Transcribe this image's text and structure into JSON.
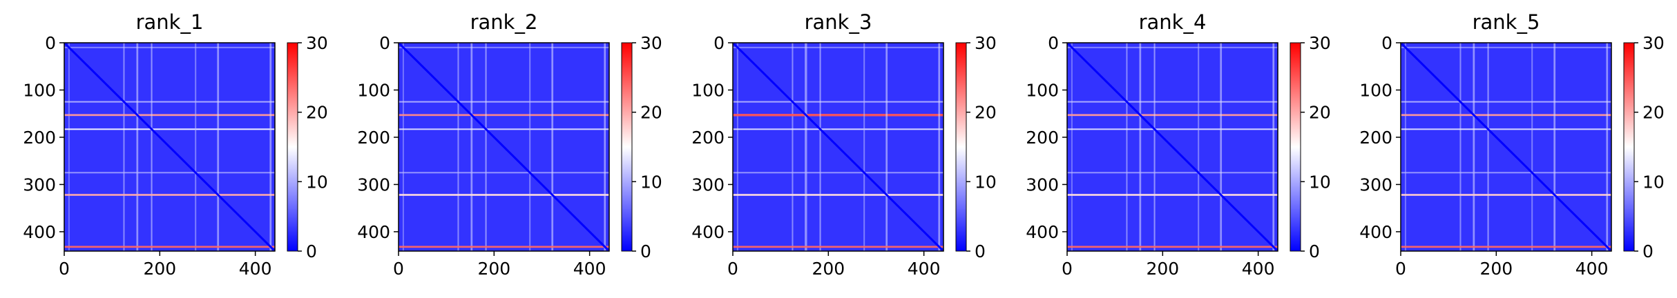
{
  "chart_data": [
    {
      "type": "heatmap",
      "title": "rank_1",
      "x_ticks": [
        0,
        200,
        400
      ],
      "y_ticks": [
        0,
        100,
        200,
        300,
        400
      ],
      "xlim": [
        0,
        441
      ],
      "ylim": [
        441,
        0
      ],
      "colorbar": {
        "ticks": [
          0,
          10,
          20,
          30
        ],
        "range": [
          0,
          30
        ],
        "colormap": "bwr"
      },
      "bands": [
        {
          "center": 10,
          "level": 10,
          "width": 2
        },
        {
          "center": 125,
          "level": 12,
          "width": 3
        },
        {
          "center": 153,
          "level": 21,
          "width": 4
        },
        {
          "center": 183,
          "level": 15,
          "width": 3
        },
        {
          "center": 275,
          "level": 11,
          "width": 2
        },
        {
          "center": 322,
          "level": 20,
          "width": 4
        },
        {
          "center": 432,
          "level": 24,
          "width": 4
        }
      ]
    },
    {
      "type": "heatmap",
      "title": "rank_2",
      "x_ticks": [
        0,
        200,
        400
      ],
      "y_ticks": [
        0,
        100,
        200,
        300,
        400
      ],
      "xlim": [
        0,
        441
      ],
      "ylim": [
        441,
        0
      ],
      "colorbar": {
        "ticks": [
          0,
          10,
          20,
          30
        ],
        "range": [
          0,
          30
        ],
        "colormap": "bwr"
      },
      "bands": [
        {
          "center": 10,
          "level": 10,
          "width": 2
        },
        {
          "center": 125,
          "level": 12,
          "width": 3
        },
        {
          "center": 153,
          "level": 22,
          "width": 4
        },
        {
          "center": 183,
          "level": 14,
          "width": 3
        },
        {
          "center": 275,
          "level": 11,
          "width": 2
        },
        {
          "center": 322,
          "level": 17,
          "width": 4
        },
        {
          "center": 432,
          "level": 24,
          "width": 4
        }
      ]
    },
    {
      "type": "heatmap",
      "title": "rank_3",
      "x_ticks": [
        0,
        200,
        400
      ],
      "y_ticks": [
        0,
        100,
        200,
        300,
        400
      ],
      "xlim": [
        0,
        441
      ],
      "ylim": [
        441,
        0
      ],
      "colorbar": {
        "ticks": [
          0,
          10,
          20,
          30
        ],
        "range": [
          0,
          30
        ],
        "colormap": "bwr"
      },
      "bands": [
        {
          "center": 10,
          "level": 10,
          "width": 2
        },
        {
          "center": 125,
          "level": 12,
          "width": 3
        },
        {
          "center": 153,
          "level": 25,
          "width": 5
        },
        {
          "center": 183,
          "level": 14,
          "width": 3
        },
        {
          "center": 275,
          "level": 11,
          "width": 2
        },
        {
          "center": 322,
          "level": 17,
          "width": 4
        },
        {
          "center": 432,
          "level": 24,
          "width": 4
        }
      ]
    },
    {
      "type": "heatmap",
      "title": "rank_4",
      "x_ticks": [
        0,
        200,
        400
      ],
      "y_ticks": [
        0,
        100,
        200,
        300,
        400
      ],
      "xlim": [
        0,
        441
      ],
      "ylim": [
        441,
        0
      ],
      "colorbar": {
        "ticks": [
          0,
          10,
          20,
          30
        ],
        "range": [
          0,
          30
        ],
        "colormap": "bwr"
      },
      "bands": [
        {
          "center": 10,
          "level": 10,
          "width": 2
        },
        {
          "center": 125,
          "level": 12,
          "width": 3
        },
        {
          "center": 153,
          "level": 21,
          "width": 4
        },
        {
          "center": 183,
          "level": 14,
          "width": 3
        },
        {
          "center": 275,
          "level": 11,
          "width": 2
        },
        {
          "center": 322,
          "level": 17,
          "width": 4
        },
        {
          "center": 432,
          "level": 24,
          "width": 4
        }
      ]
    },
    {
      "type": "heatmap",
      "title": "rank_5",
      "x_ticks": [
        0,
        200,
        400
      ],
      "y_ticks": [
        0,
        100,
        200,
        300,
        400
      ],
      "xlim": [
        0,
        441
      ],
      "ylim": [
        441,
        0
      ],
      "colorbar": {
        "ticks": [
          0,
          10,
          20,
          30
        ],
        "range": [
          0,
          30
        ],
        "colormap": "bwr"
      },
      "bands": [
        {
          "center": 10,
          "level": 10,
          "width": 2
        },
        {
          "center": 125,
          "level": 12,
          "width": 3
        },
        {
          "center": 153,
          "level": 21,
          "width": 4
        },
        {
          "center": 183,
          "level": 14,
          "width": 3
        },
        {
          "center": 275,
          "level": 11,
          "width": 2
        },
        {
          "center": 322,
          "level": 18,
          "width": 4
        },
        {
          "center": 432,
          "level": 24,
          "width": 4
        }
      ]
    }
  ],
  "colors": {
    "low": "#0000ff",
    "mid": "#ffffff",
    "high": "#ff0000",
    "background_level": 3,
    "diagonal_level": 0
  }
}
